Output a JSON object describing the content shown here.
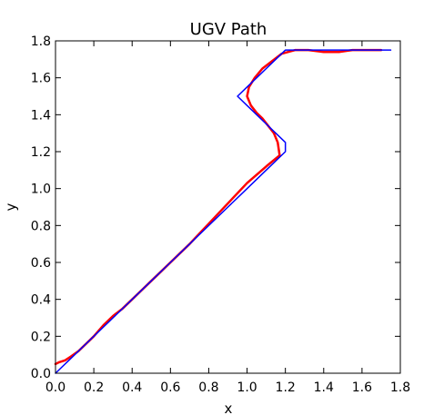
{
  "chart_data": {
    "type": "line",
    "title": "UGV Path",
    "xlabel": "x",
    "ylabel": "y",
    "xlim": [
      0,
      1.8
    ],
    "ylim": [
      0,
      1.8
    ],
    "xticks": [
      "0.0",
      "0.2",
      "0.4",
      "0.6",
      "0.8",
      "1.0",
      "1.2",
      "1.4",
      "1.6",
      "1.8"
    ],
    "yticks": [
      "0.0",
      "0.2",
      "0.4",
      "0.6",
      "0.8",
      "1.0",
      "1.2",
      "1.4",
      "1.6",
      "1.8"
    ],
    "grid": false,
    "series": [
      {
        "color": "#ff0000",
        "width": 2.5,
        "x": [
          0.0,
          0.02,
          0.05,
          0.08,
          0.12,
          0.16,
          0.2,
          0.25,
          0.3,
          0.35,
          0.4,
          0.45,
          0.5,
          0.55,
          0.6,
          0.7,
          0.8,
          0.9,
          1.0,
          1.1,
          1.17,
          1.16,
          1.14,
          1.11,
          1.08,
          1.05,
          1.02,
          1.0,
          1.01,
          1.04,
          1.08,
          1.13,
          1.18,
          1.25,
          1.32,
          1.4,
          1.48,
          1.55,
          1.62,
          1.7
        ],
        "y": [
          0.05,
          0.06,
          0.07,
          0.09,
          0.12,
          0.16,
          0.2,
          0.26,
          0.31,
          0.35,
          0.4,
          0.45,
          0.5,
          0.55,
          0.6,
          0.7,
          0.81,
          0.92,
          1.03,
          1.12,
          1.18,
          1.25,
          1.3,
          1.34,
          1.38,
          1.41,
          1.45,
          1.5,
          1.55,
          1.6,
          1.65,
          1.69,
          1.73,
          1.75,
          1.75,
          1.74,
          1.74,
          1.75,
          1.75,
          1.75
        ]
      },
      {
        "color": "#0000ff",
        "width": 1.5,
        "x": [
          0.0,
          0.1,
          0.2,
          0.3,
          0.4,
          0.5,
          0.6,
          0.7,
          0.8,
          0.9,
          1.0,
          1.1,
          1.2,
          1.2,
          1.15,
          1.1,
          1.05,
          1.0,
          0.95,
          1.0,
          1.05,
          1.1,
          1.15,
          1.2,
          1.3,
          1.4,
          1.5,
          1.6,
          1.7,
          1.75
        ],
        "y": [
          0.0,
          0.1,
          0.2,
          0.3,
          0.4,
          0.5,
          0.6,
          0.7,
          0.8,
          0.9,
          1.0,
          1.1,
          1.2,
          1.25,
          1.3,
          1.35,
          1.4,
          1.45,
          1.5,
          1.55,
          1.6,
          1.65,
          1.7,
          1.75,
          1.75,
          1.75,
          1.75,
          1.75,
          1.75,
          1.75
        ]
      }
    ]
  }
}
